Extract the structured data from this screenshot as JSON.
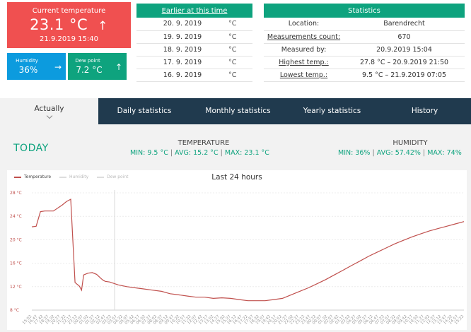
{
  "current": {
    "label": "Current temperature",
    "value": "23.1 °C",
    "trend_icon": "↑",
    "timestamp": "21.9.2019 15:40",
    "bg_color": "#f05050"
  },
  "humidity_card": {
    "label": "Humidity",
    "value": "36%",
    "trend_icon": "→",
    "bg_color": "#0c9bde"
  },
  "dewpoint_card": {
    "label": "Dew point",
    "value": "7.2 °C",
    "trend_icon": "↑",
    "bg_color": "#0ea37e"
  },
  "earlier": {
    "header": "Earlier at this time",
    "rows": [
      {
        "date": "20. 9. 2019",
        "unit": "°C"
      },
      {
        "date": "19. 9. 2019",
        "unit": "°C"
      },
      {
        "date": "18. 9. 2019",
        "unit": "°C"
      },
      {
        "date": "17. 9. 2019",
        "unit": "°C"
      },
      {
        "date": "16. 9. 2019",
        "unit": "°C"
      }
    ]
  },
  "statistics": {
    "header": "Statistics",
    "rows": [
      {
        "key": "Location:",
        "value": "Barendrecht"
      },
      {
        "key": "Measurements count:",
        "value": "670"
      },
      {
        "key": "Measured by:",
        "value": "20.9.2019 15:04"
      },
      {
        "key": "Highest temp.:",
        "value": "27.8 °C – 20.9.2019 21:50"
      },
      {
        "key": "Lowest temp.:",
        "value": "9.5 °C – 21.9.2019 07:05"
      }
    ]
  },
  "tabs": [
    "Actually",
    "Daily statistics",
    "Monthly statistics",
    "Yearly statistics",
    "History"
  ],
  "today_label": "TODAY",
  "temperature_block": {
    "title": "TEMPERATURE",
    "min": "MIN: 9.5 °C",
    "avg": "AVG: 15.2 °C",
    "max": "MAX: 23.1 °C",
    "separator": "|"
  },
  "humidity_block": {
    "title": "HUMIDITY",
    "min": "MIN: 36%",
    "avg": "AVG: 57.42%",
    "max": "MAX: 74%",
    "separator": "|"
  },
  "colors": {
    "accent_green": "#0ea37e",
    "nav_dark": "#203a4e",
    "temp_line": "#c0504d"
  },
  "chart_data": {
    "type": "line",
    "title": "Last 24 hours",
    "legend": [
      "Temperature",
      "Humidity",
      "Dew point"
    ],
    "legend_placement": "top-left",
    "y_ticks": [
      "28 °C",
      "24 °C",
      "20 °C",
      "16 °C",
      "12 °C",
      "8 °C"
    ],
    "ylim": [
      8,
      28
    ],
    "grid": true,
    "x_tick_labels": [
      "15:52",
      "16:47",
      "17:42",
      "18:37",
      "19:32",
      "20:27",
      "21:22",
      "22:17",
      "23:12",
      "00:07",
      "01:02",
      "01:37",
      "02:12",
      "02:47",
      "03:22",
      "03:57",
      "04:32",
      "05:07",
      "05:42",
      "06:17",
      "06:52",
      "07:27",
      "08:02",
      "08:37",
      "09:12",
      "09:47",
      "10:22",
      "10:57",
      "11:32",
      "12:07",
      "12:42",
      "13:17",
      "13:52",
      "14:27",
      "15:02",
      "15:37",
      "16:12",
      "16:47",
      "17:22",
      "17:57",
      "18:32",
      "19:07",
      "19:42",
      "20:17",
      "20:52",
      "21:27",
      "22:02",
      "22:37",
      "23:12",
      "23:47",
      "00:22",
      "00:57",
      "01:32",
      "02:07",
      "02:42",
      "03:17",
      "03:52",
      "04:27",
      "05:02",
      "05:37",
      "06:12",
      "06:47",
      "07:22",
      "07:57",
      "08:32",
      "09:07",
      "09:42",
      "10:17",
      "10:52",
      "11:27",
      "12:02",
      "12:37",
      "13:12",
      "13:47",
      "14:22",
      "14:57",
      "15:22"
    ],
    "series": [
      {
        "name": "Temperature",
        "x_fraction": [
          0,
          0.01,
          0.02,
          0.03,
          0.05,
          0.07,
          0.08,
          0.09,
          0.1,
          0.11,
          0.115,
          0.12,
          0.13,
          0.14,
          0.15,
          0.16,
          0.165,
          0.17,
          0.18,
          0.2,
          0.22,
          0.24,
          0.26,
          0.28,
          0.3,
          0.32,
          0.34,
          0.36,
          0.38,
          0.4,
          0.42,
          0.44,
          0.46,
          0.48,
          0.5,
          0.52,
          0.54,
          0.56,
          0.58,
          0.6,
          0.62,
          0.64,
          0.66,
          0.68,
          0.7,
          0.72,
          0.74,
          0.76,
          0.78,
          0.8,
          0.82,
          0.84,
          0.86,
          0.88,
          0.9,
          0.92,
          0.94,
          0.96,
          0.98,
          1.0
        ],
        "values": [
          22.2,
          22.3,
          24.8,
          24.9,
          24.9,
          25.9,
          26.5,
          26.9,
          12.7,
          12.1,
          11.4,
          14.0,
          14.3,
          14.4,
          14.1,
          13.4,
          13.1,
          12.9,
          12.8,
          12.3,
          12.0,
          11.8,
          11.6,
          11.4,
          11.2,
          10.8,
          10.6,
          10.4,
          10.2,
          10.2,
          10.0,
          10.1,
          10.0,
          9.8,
          9.6,
          9.6,
          9.6,
          9.8,
          10.0,
          10.6,
          11.2,
          11.8,
          12.5,
          13.2,
          14.0,
          14.8,
          15.6,
          16.4,
          17.2,
          17.9,
          18.6,
          19.3,
          19.9,
          20.5,
          21.0,
          21.5,
          21.9,
          22.3,
          22.7,
          23.1
        ]
      }
    ]
  }
}
